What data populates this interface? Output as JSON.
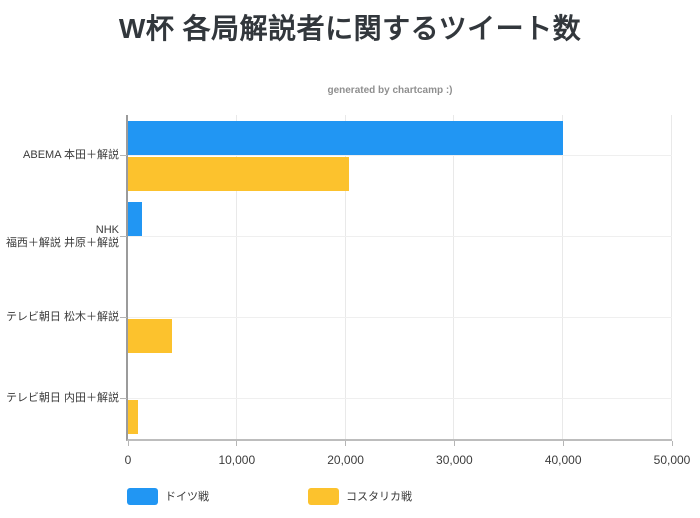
{
  "title": "W杯 各局解説者に関するツイート数",
  "watermark": "generated by chartcamp :)",
  "chart_data": {
    "type": "bar",
    "orientation": "horizontal",
    "title": "W杯 各局解説者に関するツイート数",
    "categories": [
      "ABEMA 本田＋解説",
      "NHK 福西＋解説 井原＋解説",
      "テレビ朝日 松木＋解説",
      "テレビ朝日 内田＋解説"
    ],
    "category_label_lines": [
      [
        "ABEMA 本田＋解説"
      ],
      [
        "NHK",
        "福西＋解説 井原＋解説"
      ],
      [
        "テレビ朝日 松木＋解説"
      ],
      [
        "テレビ朝日 内田＋解説"
      ]
    ],
    "series": [
      {
        "name": "ドイツ戦",
        "color": "#2196F3",
        "values": [
          40000,
          1300,
          0,
          0
        ]
      },
      {
        "name": "コスタリカ戦",
        "color": "#FCC22D",
        "values": [
          20300,
          0,
          4000,
          900
        ]
      }
    ],
    "xlim": [
      0,
      50000
    ],
    "x_tick_labels": [
      "0",
      "10,000",
      "20,000",
      "30,000",
      "40,000",
      "50,000"
    ],
    "grid": true,
    "legend_position": "bottom",
    "axis_color": "#9b9b9b",
    "gridline_color": "#e9e9e9"
  }
}
